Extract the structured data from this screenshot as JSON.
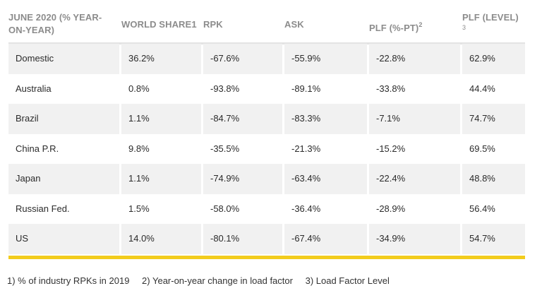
{
  "table": {
    "headers": [
      {
        "text": "JUNE 2020 (% YEAR-ON-YEAR)",
        "line1": "JUNE 2020 (% YEAR-",
        "line2": "ON-YEAR)"
      },
      {
        "text": "WORLD SHARE1"
      },
      {
        "text": "RPK"
      },
      {
        "text": "ASK"
      },
      {
        "text": "PLF (%-PT)",
        "sup": "2"
      },
      {
        "text": "PLF (LEVEL)",
        "note": "3"
      }
    ],
    "rows": [
      {
        "cells": [
          "Domestic",
          "36.2%",
          "-67.6%",
          "-55.9%",
          "-22.8%",
          "62.9%"
        ]
      },
      {
        "cells": [
          "Australia",
          "0.8%",
          "-93.8%",
          "-89.1%",
          "-33.8%",
          "44.4%"
        ]
      },
      {
        "cells": [
          "Brazil",
          "1.1%",
          "-84.7%",
          "-83.3%",
          "-7.1%",
          "74.7%"
        ]
      },
      {
        "cells": [
          "China P.R.",
          "9.8%",
          "-35.5%",
          "-21.3%",
          "-15.2%",
          "69.5%"
        ]
      },
      {
        "cells": [
          "Japan",
          "1.1%",
          "-74.9%",
          "-63.4%",
          "-22.4%",
          "48.8%"
        ]
      },
      {
        "cells": [
          "Russian Fed.",
          "1.5%",
          "-58.0%",
          "-36.4%",
          "-28.9%",
          "56.4%"
        ]
      },
      {
        "cells": [
          "US",
          "14.0%",
          "-80.1%",
          "-67.4%",
          "-34.9%",
          "54.7%"
        ]
      }
    ]
  },
  "footnotes": [
    "1) % of industry RPKs in 2019",
    "2) Year-on-year change in load factor",
    "3) Load Factor Level"
  ],
  "colors": {
    "accent_rule": "#f2cc1c",
    "row_shade": "#f1f1f1",
    "header_text": "#8c8c8c"
  }
}
